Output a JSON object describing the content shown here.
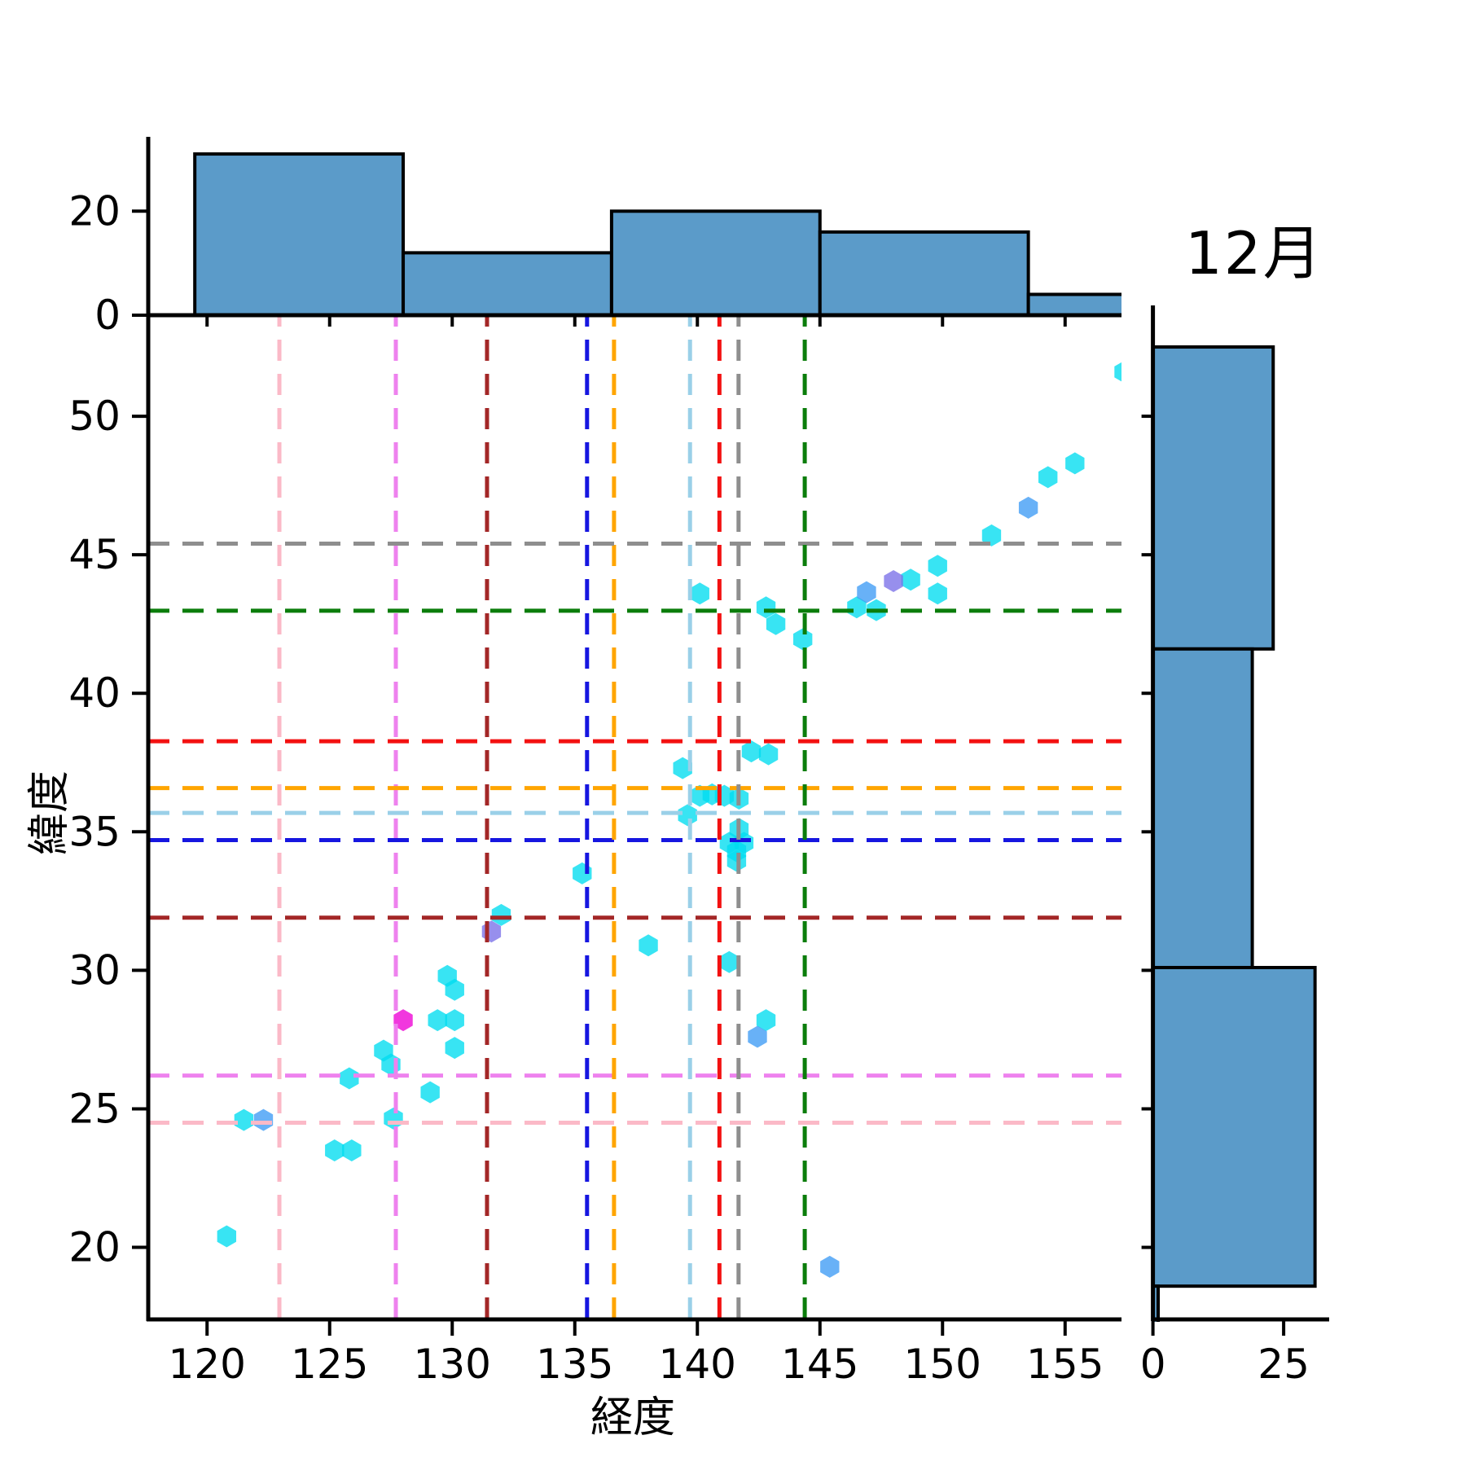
{
  "title": "12月",
  "colors": {
    "background": "#ffffff",
    "hist_fill": "#5b9bc9",
    "hist_edge": "#000000",
    "axis": "#000000",
    "marker_cyan": "#00dcef",
    "marker_blue": "#3d9bf5",
    "marker_purple": "#7a6fe8",
    "marker_magenta": "#ed00d5"
  },
  "chart_data": {
    "type": "scatter",
    "title": "12月",
    "xlabel": "経度",
    "ylabel": "緯度",
    "xlim": [
      117.6,
      157.3
    ],
    "ylim": [
      17.4,
      54.0
    ],
    "x_ticks": [
      120,
      125,
      130,
      135,
      140,
      145,
      150,
      155
    ],
    "y_ticks": [
      20,
      25,
      30,
      35,
      40,
      45,
      50
    ],
    "grid": false,
    "marker": "hexagon",
    "series": [
      {
        "name": "cyan",
        "color": "#00dcef",
        "points": [
          [
            157.4,
            51.6
          ],
          [
            155.4,
            48.3
          ],
          [
            154.3,
            47.8
          ],
          [
            152.0,
            45.7
          ],
          [
            149.8,
            44.6
          ],
          [
            148.7,
            44.1
          ],
          [
            149.8,
            43.6
          ],
          [
            147.3,
            43.0
          ],
          [
            146.5,
            43.1
          ],
          [
            144.3,
            41.95
          ],
          [
            143.2,
            42.5
          ],
          [
            142.8,
            43.1
          ],
          [
            140.1,
            43.6
          ],
          [
            142.2,
            37.9
          ],
          [
            142.9,
            37.8
          ],
          [
            139.4,
            37.3
          ],
          [
            140.1,
            36.3
          ],
          [
            140.6,
            36.35
          ],
          [
            141.1,
            36.3
          ],
          [
            141.7,
            36.2
          ],
          [
            139.6,
            35.6
          ],
          [
            141.7,
            35.1
          ],
          [
            141.3,
            34.6
          ],
          [
            141.9,
            34.6
          ],
          [
            141.6,
            34.3
          ],
          [
            141.6,
            33.95
          ],
          [
            135.3,
            33.5
          ],
          [
            138.0,
            30.9
          ],
          [
            141.3,
            30.3
          ],
          [
            132.0,
            32.0
          ],
          [
            129.8,
            29.8
          ],
          [
            130.1,
            29.3
          ],
          [
            129.4,
            28.2
          ],
          [
            130.1,
            28.2
          ],
          [
            142.8,
            28.2
          ],
          [
            130.1,
            27.2
          ],
          [
            127.2,
            27.1
          ],
          [
            127.5,
            26.6
          ],
          [
            125.8,
            26.1
          ],
          [
            129.1,
            25.6
          ],
          [
            121.5,
            24.6
          ],
          [
            127.6,
            24.65
          ],
          [
            125.2,
            23.5
          ],
          [
            125.9,
            23.5
          ],
          [
            120.8,
            20.4
          ]
        ]
      },
      {
        "name": "blue",
        "color": "#3d9bf5",
        "points": [
          [
            153.5,
            46.7
          ],
          [
            146.9,
            43.65
          ],
          [
            142.45,
            27.6
          ],
          [
            122.3,
            24.6
          ],
          [
            145.4,
            19.3
          ]
        ]
      },
      {
        "name": "purple",
        "color": "#7a6fe8",
        "points": [
          [
            148.0,
            44.05
          ],
          [
            131.6,
            31.4
          ]
        ]
      },
      {
        "name": "magenta",
        "color": "#ed00d5",
        "points": [
          [
            128.0,
            28.2
          ]
        ]
      }
    ],
    "reference_crosshairs": [
      {
        "name": "pink",
        "color": "#fbb9c7",
        "x": 122.95,
        "y": 24.5
      },
      {
        "name": "violet",
        "color": "#ee82ee",
        "x": 127.7,
        "y": 26.2
      },
      {
        "name": "darkred",
        "color": "#a32727",
        "x": 131.42,
        "y": 31.9
      },
      {
        "name": "blue",
        "color": "#1616e0",
        "x": 135.5,
        "y": 34.7
      },
      {
        "name": "orange",
        "color": "#ffa500",
        "x": 136.6,
        "y": 36.58
      },
      {
        "name": "lightblue",
        "color": "#9ad0e8",
        "x": 139.7,
        "y": 35.68
      },
      {
        "name": "red",
        "color": "#f31111",
        "x": 140.9,
        "y": 38.27
      },
      {
        "name": "gray",
        "color": "#8e8e8e",
        "x": 141.68,
        "y": 45.4
      },
      {
        "name": "green",
        "color": "#0b7d0b",
        "x": 144.38,
        "y": 42.98
      }
    ],
    "top_histogram": {
      "bin_edges": [
        119.5,
        128.0,
        136.5,
        145.0,
        153.5,
        162.0
      ],
      "counts": [
        31,
        12,
        20,
        16,
        4
      ],
      "y_ticks": [
        0,
        20
      ]
    },
    "right_histogram": {
      "bin_edges": [
        52.5,
        41.6,
        30.1,
        18.6,
        17.2
      ],
      "counts": [
        23,
        19,
        31,
        1
      ],
      "x_ticks": [
        0,
        25
      ]
    }
  }
}
